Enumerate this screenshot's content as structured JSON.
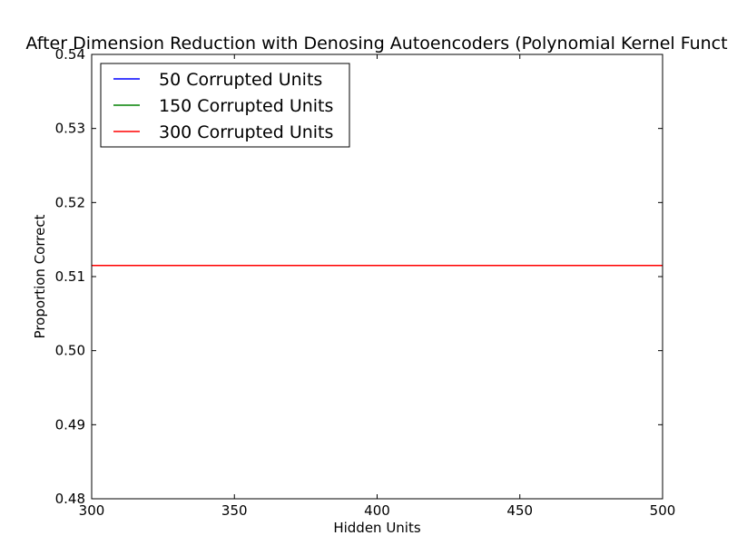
{
  "chart_data": {
    "type": "line",
    "title": "After Dimension Reduction with Denosing Autoencoders (Polynomial Kernel Funct",
    "xlabel": "Hidden Units",
    "ylabel": "Proportion Correct",
    "xlim": [
      300,
      500
    ],
    "ylim": [
      0.48,
      0.54
    ],
    "xticks": [
      "300",
      "350",
      "400",
      "450",
      "500"
    ],
    "yticks": [
      "0.48",
      "0.49",
      "0.50",
      "0.51",
      "0.52",
      "0.53",
      "0.54"
    ],
    "grid": false,
    "legend_position": "top-left",
    "x": [
      300,
      500
    ],
    "series": [
      {
        "name": "50 Corrupted Units",
        "color": "#0000ff",
        "values": [
          0.5115,
          0.5115
        ]
      },
      {
        "name": "150 Corrupted Units",
        "color": "#008000",
        "values": [
          0.5115,
          0.5115
        ]
      },
      {
        "name": "300 Corrupted Units",
        "color": "#ff0000",
        "values": [
          0.5115,
          0.5115
        ]
      }
    ]
  }
}
